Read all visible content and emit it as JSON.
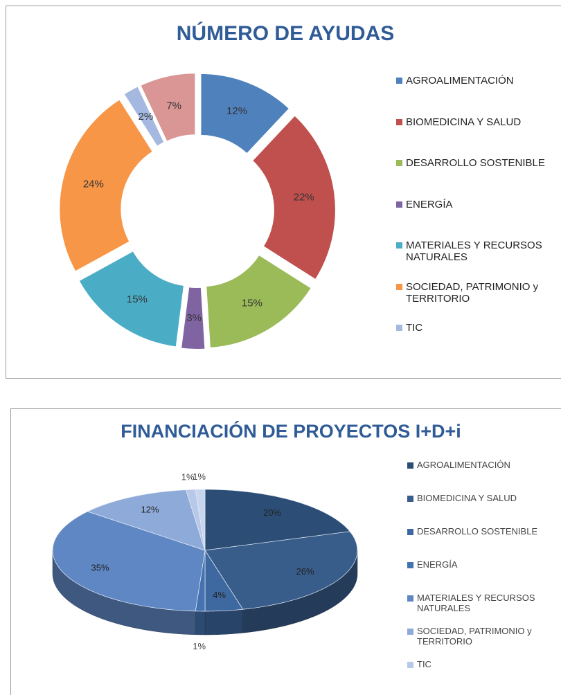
{
  "chart_data": [
    {
      "type": "doughnut",
      "title": "NÚMERO DE AYUDAS",
      "categories": [
        "AGROALIMENTACIÓN",
        "BIOMEDICINA Y SALUD",
        "DESARROLLO SOSTENIBLE",
        "ENERGÍA",
        "MATERIALES Y RECURSOS NATURALES",
        "SOCIEDAD, PATRIMONIO y TERRITORIO",
        "TIC",
        null
      ],
      "values": [
        12,
        22,
        15,
        3,
        15,
        24,
        2,
        7
      ],
      "value_labels": [
        "12%",
        "22%",
        "15%",
        "3%",
        "15%",
        "24%",
        "2%",
        "7%"
      ],
      "colors": [
        "#4f81bd",
        "#c0504d",
        "#9bbb59",
        "#8064a2",
        "#4bacc6",
        "#f79646",
        "#a5b8e0",
        "#d99694"
      ],
      "legend": "right"
    },
    {
      "type": "pie",
      "3d": true,
      "title": "FINANCIACIÓN DE PROYECTOS I+D+i",
      "categories": [
        "AGROALIMENTACIÓN",
        "BIOMEDICINA Y SALUD",
        "DESARROLLO SOSTENIBLE",
        "ENERGÍA",
        "MATERIALES Y RECURSOS NATURALES",
        "SOCIEDAD, PATRIMONIO y TERRITORIO",
        "TIC",
        null
      ],
      "values": [
        20,
        26,
        4,
        1,
        35,
        12,
        1,
        1
      ],
      "value_labels": [
        "20%",
        "26%",
        "4%",
        "1%",
        "35%",
        "12%",
        "1%",
        "1%"
      ],
      "colors": [
        "#2c4d75",
        "#385d8a",
        "#3e69a0",
        "#4572b0",
        "#5f87c4",
        "#8eaad8",
        "#b7c8e8",
        "#c8d5ee"
      ],
      "legend": "right"
    }
  ]
}
